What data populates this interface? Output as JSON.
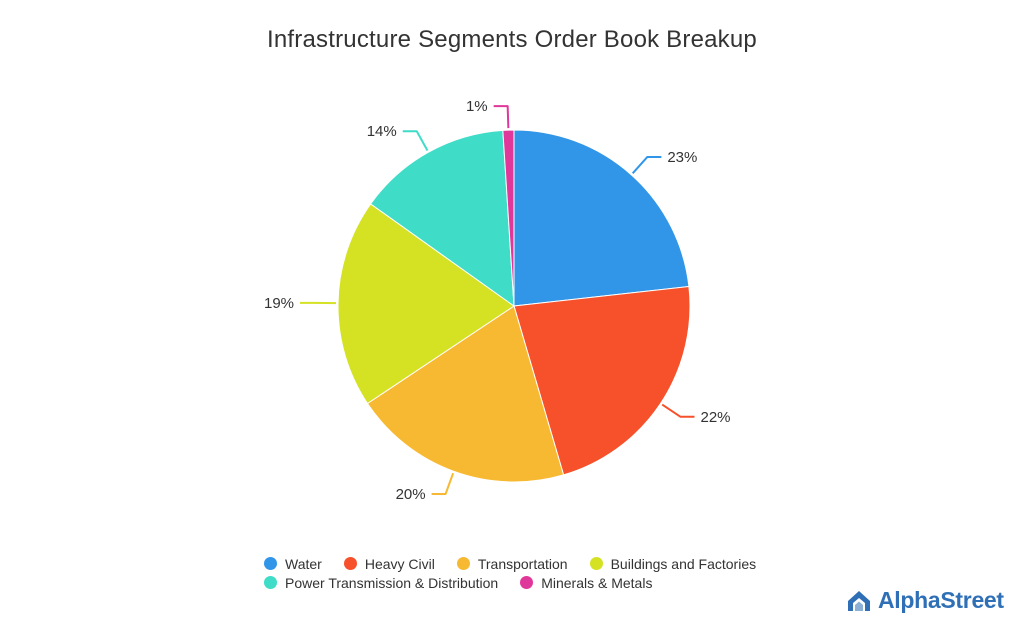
{
  "chart_data": {
    "type": "pie",
    "title": "Infrastructure Segments Order Book Breakup",
    "categories": [
      "Water",
      "Heavy Civil",
      "Transportation",
      "Buildings and Factories",
      "Power Transmission & Distribution",
      "Minerals & Metals"
    ],
    "values": [
      23,
      22,
      20,
      19,
      14,
      1
    ],
    "labels": [
      "23%",
      "22%",
      "20%",
      "19%",
      "14%",
      "1%"
    ],
    "colors": [
      "#3296e8",
      "#f6512b",
      "#f7b932",
      "#d5e123",
      "#3fdcc8",
      "#e0379b"
    ],
    "legend_position": "bottom"
  },
  "brand": {
    "name": "AlphaStreet",
    "color": "#2f6fb6"
  }
}
